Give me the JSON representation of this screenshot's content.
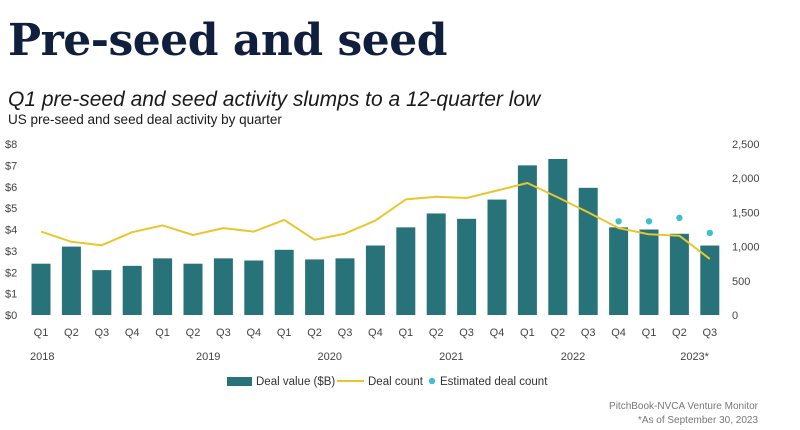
{
  "header": {
    "title": "Pre-seed and seed",
    "subtitle": "Q1 pre-seed and seed activity slumps to a 12-quarter low",
    "caption": "US pre-seed and seed deal activity by quarter"
  },
  "footer": {
    "source": "PitchBook-NVCA Venture Monitor",
    "note": "*As of September 30, 2023"
  },
  "colors": {
    "bar": "#28737a",
    "line": "#e8c72e",
    "estimate": "#3fbfc6",
    "axis_text": "#444444"
  },
  "chart_data": {
    "type": "bar",
    "categories": [
      "Q1",
      "Q2",
      "Q3",
      "Q4",
      "Q1",
      "Q2",
      "Q3",
      "Q4",
      "Q1",
      "Q2",
      "Q3",
      "Q4",
      "Q1",
      "Q2",
      "Q3",
      "Q4",
      "Q1",
      "Q2",
      "Q3",
      "Q4",
      "Q1",
      "Q2",
      "Q3"
    ],
    "year_labels": [
      {
        "label": "2018",
        "index": 0
      },
      {
        "label": "2019",
        "index": 4
      },
      {
        "label": "2020",
        "index": 8
      },
      {
        "label": "2021",
        "index": 12
      },
      {
        "label": "2022",
        "index": 16
      },
      {
        "label": "2023*",
        "index": 20
      }
    ],
    "series": [
      {
        "name": "Deal value ($B)",
        "kind": "bar",
        "axis": "left",
        "values": [
          2.4,
          3.2,
          2.1,
          2.3,
          2.65,
          2.4,
          2.65,
          2.55,
          3.05,
          2.6,
          2.65,
          3.25,
          4.1,
          4.75,
          4.5,
          5.4,
          7.0,
          7.3,
          5.95,
          4.1,
          4.0,
          3.8,
          3.25
        ]
      },
      {
        "name": "Deal count",
        "kind": "line",
        "axis": "right",
        "values": [
          1220,
          1070,
          1020,
          1210,
          1310,
          1170,
          1270,
          1220,
          1390,
          1100,
          1190,
          1380,
          1690,
          1730,
          1710,
          1820,
          1930,
          1720,
          1500,
          1270,
          1180,
          1160,
          820
        ]
      },
      {
        "name": "Estimated deal count",
        "kind": "scatter",
        "axis": "right",
        "values": [
          null,
          null,
          null,
          null,
          null,
          null,
          null,
          null,
          null,
          null,
          null,
          null,
          null,
          null,
          null,
          null,
          null,
          null,
          null,
          1370,
          1370,
          1420,
          1200
        ]
      }
    ],
    "y_left": {
      "ticks": [
        "$0",
        "$1",
        "$2",
        "$3",
        "$4",
        "$5",
        "$6",
        "$7",
        "$8"
      ],
      "range": [
        0,
        8
      ]
    },
    "y_right": {
      "ticks": [
        "0",
        "500",
        "1,000",
        "1,500",
        "2,000",
        "2,500"
      ],
      "range": [
        0,
        2500
      ]
    },
    "grid": false,
    "legend_position": "bottom-center"
  }
}
